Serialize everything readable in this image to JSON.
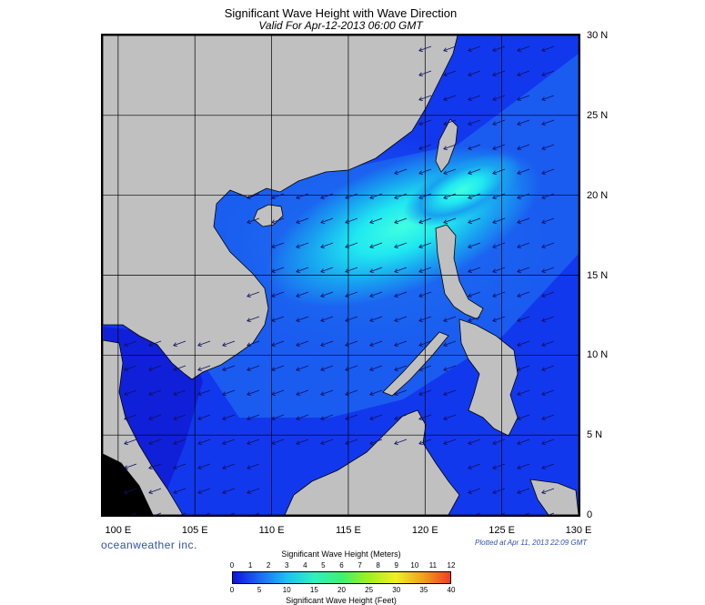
{
  "header": {
    "title": "Significant Wave Height with Wave Direction",
    "subtitle": "Valid For Apr-12-2013 06:00 GMT"
  },
  "map": {
    "lon_labels": [
      "100 E",
      "105 E",
      "110 E",
      "115 E",
      "120 E",
      "125 E",
      "130 E"
    ],
    "lat_labels": [
      "30 N",
      "25 N",
      "20 N",
      "15 N",
      "10 N",
      "5 N",
      "0"
    ],
    "lon_range": [
      99,
      130
    ],
    "lat_range": [
      0,
      30
    ],
    "grid": true,
    "colors": {
      "land": "#c0c0c0",
      "deep_sea": "#1238ee",
      "coast": "#000000",
      "arrow": "#101060"
    },
    "wave_field_description": "Highest waves (about 2.5-3 m, cyan) in the northern South China Sea near the Luzon Strait; mostly 1-2 m (blue) elsewhere; under 1 m in the Gulf of Thailand; arrows point toward the southwest."
  },
  "footer": {
    "brand": "oceanweather inc.",
    "plotted": "Plotted at Apr 11, 2013 22:09 GMT"
  },
  "colorbar": {
    "title_top": "Significant Wave Height (Meters)",
    "title_bottom": "Significant Wave Height (Feet)",
    "meters_ticks": [
      "0",
      "1",
      "2",
      "3",
      "4",
      "5",
      "6",
      "7",
      "8",
      "9",
      "10",
      "11",
      "12"
    ],
    "feet_ticks": [
      "0",
      "5",
      "10",
      "15",
      "20",
      "25",
      "30",
      "35",
      "40"
    ],
    "range_m": [
      0,
      12
    ],
    "colors": [
      "#1010e0",
      "#1a6cf0",
      "#20c0f0",
      "#30f0c0",
      "#40f070",
      "#a0f020",
      "#f0f020",
      "#f0a020",
      "#f04020"
    ]
  }
}
